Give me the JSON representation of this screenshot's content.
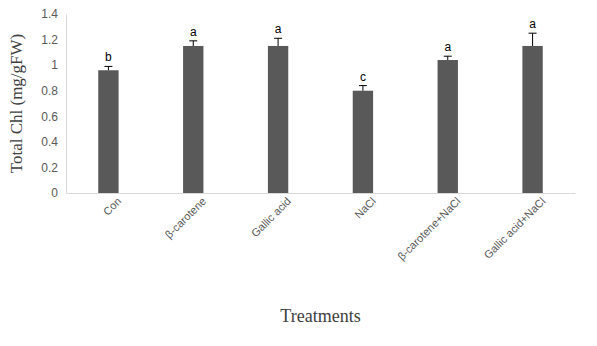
{
  "chart_data": {
    "type": "bar",
    "categories": [
      "Con",
      "β-carotene",
      "Gallic acid",
      "NaCl",
      "β-carotene+NaCl",
      "Gallic acid+NaCl"
    ],
    "values": [
      0.96,
      1.15,
      1.15,
      0.8,
      1.04,
      1.15
    ],
    "errors": [
      0.03,
      0.04,
      0.06,
      0.04,
      0.03,
      0.1
    ],
    "annotations": [
      "b",
      "a",
      "a",
      "c",
      "a",
      "a"
    ],
    "color": "#595959",
    "x_label": "Treatments",
    "y_label": "Total Chl (mg/gFW)",
    "ylim": [
      0,
      1.4
    ],
    "yticks": [
      0,
      0.2,
      0.4,
      0.6,
      0.8,
      1,
      1.2,
      1.4
    ],
    "grid": false
  }
}
